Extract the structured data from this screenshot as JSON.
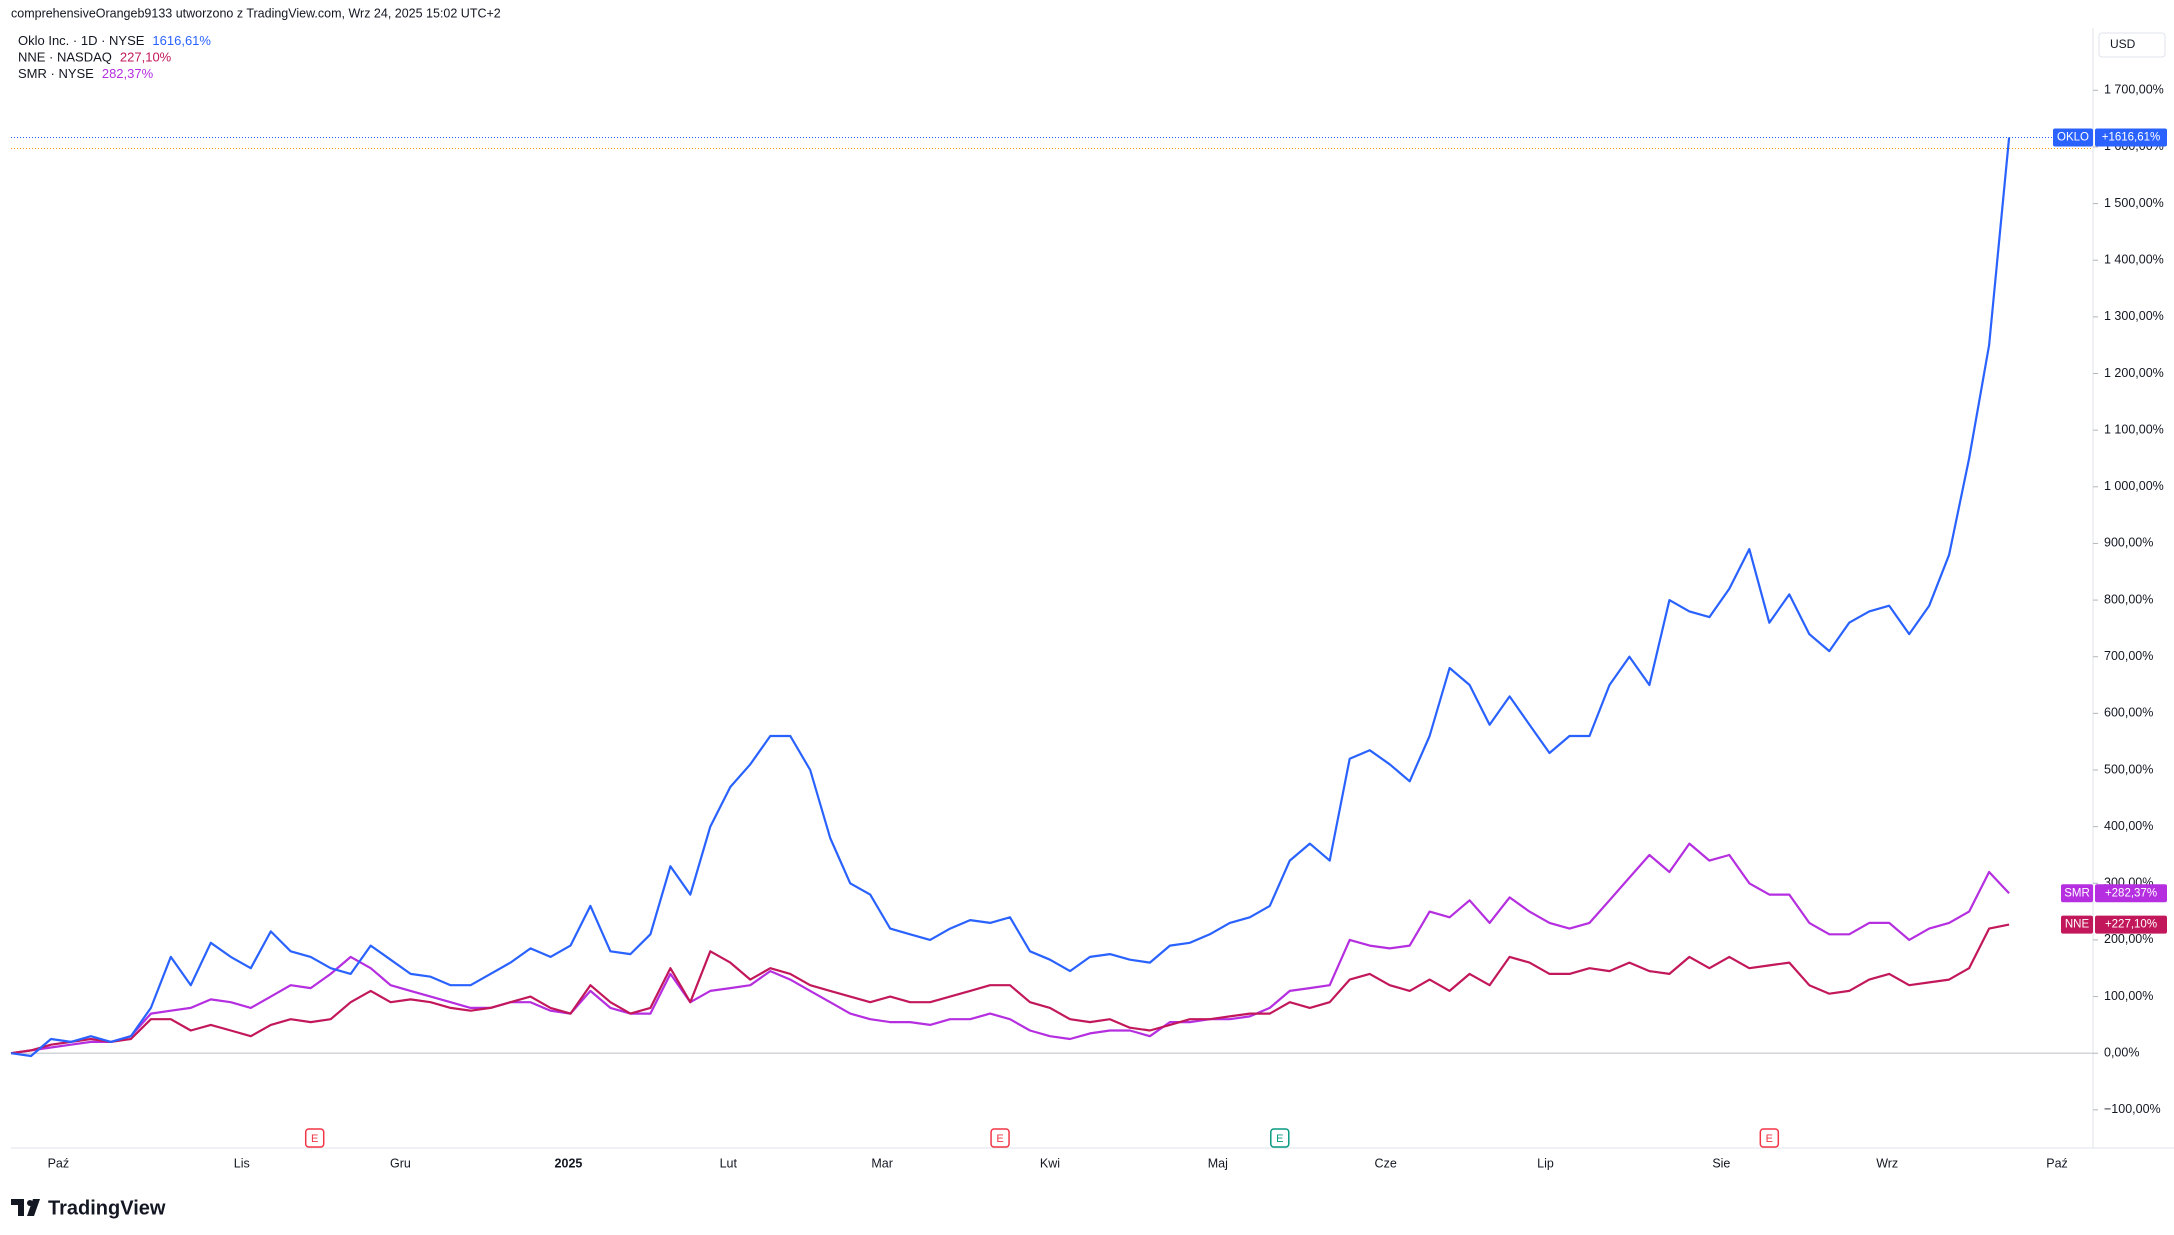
{
  "header": "comprehensiveOrangeb9133 utworzono z TradingView.com, Wrz 24, 2025 15:02 UTC+2",
  "brand": "TradingView",
  "chart_data": {
    "type": "line",
    "currency": "USD",
    "grid": false,
    "xlim": [
      0,
      104.2
    ],
    "ylim": [
      -155,
      1810
    ],
    "xticks": [
      {
        "value": 2.37,
        "label": "Paź"
      },
      {
        "value": 11.55,
        "label": "Lis"
      },
      {
        "value": 19.49,
        "label": "Gru"
      },
      {
        "value": 27.9,
        "label": "2025"
      },
      {
        "value": 35.9,
        "label": "Lut"
      },
      {
        "value": 43.6,
        "label": "Mar"
      },
      {
        "value": 52.0,
        "label": "Kwi"
      },
      {
        "value": 60.4,
        "label": "Maj"
      },
      {
        "value": 68.8,
        "label": "Cze"
      },
      {
        "value": 76.8,
        "label": "Lip"
      },
      {
        "value": 85.6,
        "label": "Sie"
      },
      {
        "value": 93.9,
        "label": "Wrz"
      },
      {
        "value": 102.4,
        "label": "Paź"
      }
    ],
    "yticks": [
      {
        "value": -100,
        "label": "−100,00%"
      },
      {
        "value": 0,
        "label": "0,00%"
      },
      {
        "value": 100,
        "label": "100,00%"
      },
      {
        "value": 200,
        "label": "200,00%"
      },
      {
        "value": 300,
        "label": "300,00%"
      },
      {
        "value": 400,
        "label": "400,00%"
      },
      {
        "value": 500,
        "label": "500,00%"
      },
      {
        "value": 600,
        "label": "600,00%"
      },
      {
        "value": 700,
        "label": "700,00%"
      },
      {
        "value": 800,
        "label": "800,00%"
      },
      {
        "value": 900,
        "label": "900,00%"
      },
      {
        "value": 1000,
        "label": "1 000,00%"
      },
      {
        "value": 1100,
        "label": "1 100,00%"
      },
      {
        "value": 1200,
        "label": "1 200,00%"
      },
      {
        "value": 1300,
        "label": "1 300,00%"
      },
      {
        "value": 1400,
        "label": "1 400,00%"
      },
      {
        "value": 1500,
        "label": "1 500,00%"
      },
      {
        "value": 1600,
        "label": "1 600,00%"
      },
      {
        "value": 1700,
        "label": "1 700,00%"
      }
    ],
    "earnings": [
      {
        "value": 15.2,
        "label": "E",
        "color": "#f23645"
      },
      {
        "value": 49.5,
        "label": "E",
        "color": "#f23645"
      },
      {
        "value": 63.5,
        "label": "E",
        "color": "#089981"
      },
      {
        "value": 88.0,
        "label": "E",
        "color": "#f23645"
      }
    ],
    "series": [
      {
        "name": "Oklo Inc. · 1D · NYSE",
        "ticker": "OKLO",
        "legend_value": "1616,61%",
        "axis_label": "+1616,61%",
        "color": "#2962ff",
        "values": [
          0,
          -5,
          25,
          20,
          30,
          20,
          30,
          80,
          170,
          120,
          195,
          170,
          150,
          215,
          180,
          170,
          150,
          140,
          190,
          165,
          140,
          135,
          120,
          120,
          140,
          160,
          185,
          170,
          190,
          260,
          180,
          175,
          210,
          330,
          280,
          400,
          470,
          510,
          560,
          560,
          500,
          380,
          300,
          280,
          220,
          210,
          200,
          220,
          235,
          230,
          240,
          180,
          165,
          145,
          170,
          175,
          165,
          160,
          190,
          195,
          210,
          230,
          240,
          260,
          340,
          370,
          340,
          520,
          535,
          510,
          480,
          560,
          680,
          650,
          580,
          630,
          580,
          530,
          560,
          560,
          650,
          700,
          650,
          800,
          780,
          770,
          820,
          890,
          760,
          810,
          740,
          710,
          760,
          780,
          790,
          740,
          790,
          880,
          1050,
          1250,
          1616.61
        ]
      },
      {
        "name": "NNE · NASDAQ",
        "ticker": "NNE",
        "legend_value": "227,10%",
        "axis_label": "+227,10%",
        "color": "#c2185b",
        "values": [
          0,
          5,
          15,
          20,
          25,
          20,
          25,
          60,
          60,
          40,
          50,
          40,
          30,
          50,
          60,
          55,
          60,
          90,
          110,
          90,
          95,
          90,
          80,
          75,
          80,
          90,
          100,
          80,
          70,
          120,
          90,
          70,
          80,
          150,
          90,
          180,
          160,
          130,
          150,
          140,
          120,
          110,
          100,
          90,
          100,
          90,
          90,
          100,
          110,
          120,
          120,
          90,
          80,
          60,
          55,
          60,
          45,
          40,
          50,
          60,
          60,
          65,
          70,
          70,
          90,
          80,
          90,
          130,
          140,
          120,
          110,
          130,
          110,
          140,
          120,
          170,
          160,
          140,
          140,
          150,
          145,
          160,
          145,
          140,
          170,
          150,
          170,
          150,
          155,
          160,
          120,
          105,
          110,
          130,
          140,
          120,
          125,
          130,
          150,
          220,
          227.1
        ]
      },
      {
        "name": "SMR · NYSE",
        "ticker": "SMR",
        "legend_value": "282,37%",
        "axis_label": "+282,37%",
        "color": "#b52ee0",
        "values": [
          0,
          5,
          10,
          15,
          20,
          20,
          30,
          70,
          75,
          80,
          95,
          90,
          80,
          100,
          120,
          115,
          140,
          170,
          150,
          120,
          110,
          100,
          90,
          80,
          80,
          90,
          90,
          75,
          70,
          110,
          80,
          70,
          70,
          140,
          90,
          110,
          115,
          120,
          145,
          130,
          110,
          90,
          70,
          60,
          55,
          55,
          50,
          60,
          60,
          70,
          60,
          40,
          30,
          25,
          35,
          40,
          40,
          30,
          55,
          55,
          60,
          60,
          65,
          80,
          110,
          115,
          120,
          200,
          190,
          185,
          190,
          250,
          240,
          270,
          230,
          275,
          250,
          230,
          220,
          230,
          270,
          310,
          350,
          320,
          370,
          340,
          350,
          300,
          280,
          280,
          230,
          210,
          210,
          230,
          230,
          200,
          220,
          230,
          250,
          320,
          282.37
        ]
      }
    ]
  }
}
